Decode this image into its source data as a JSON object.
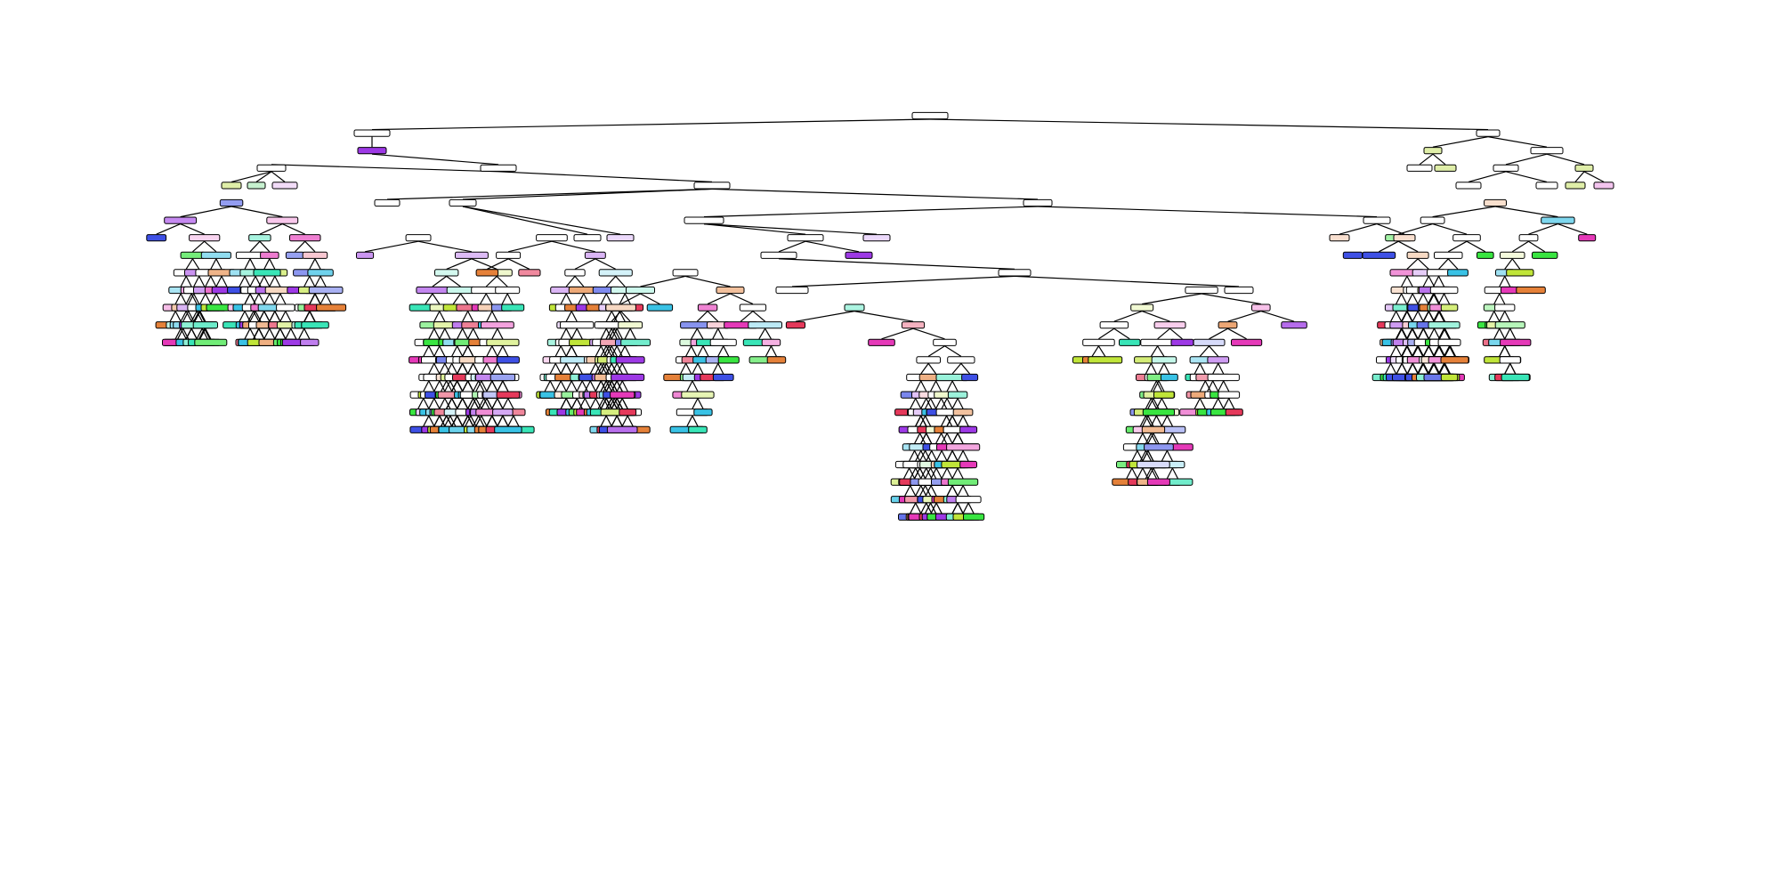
{
  "figure": {
    "type": "decision-tree-plot",
    "node_text": "",
    "palette": [
      "#e58139",
      "#c0e539",
      "#39e541",
      "#39e5b7",
      "#39c2e5",
      "#3e50e5",
      "#9d39e5",
      "#e539b8",
      "#e5395b"
    ],
    "border_color": "#000000",
    "edge_color": "#000000",
    "background": "#ffffff"
  }
}
